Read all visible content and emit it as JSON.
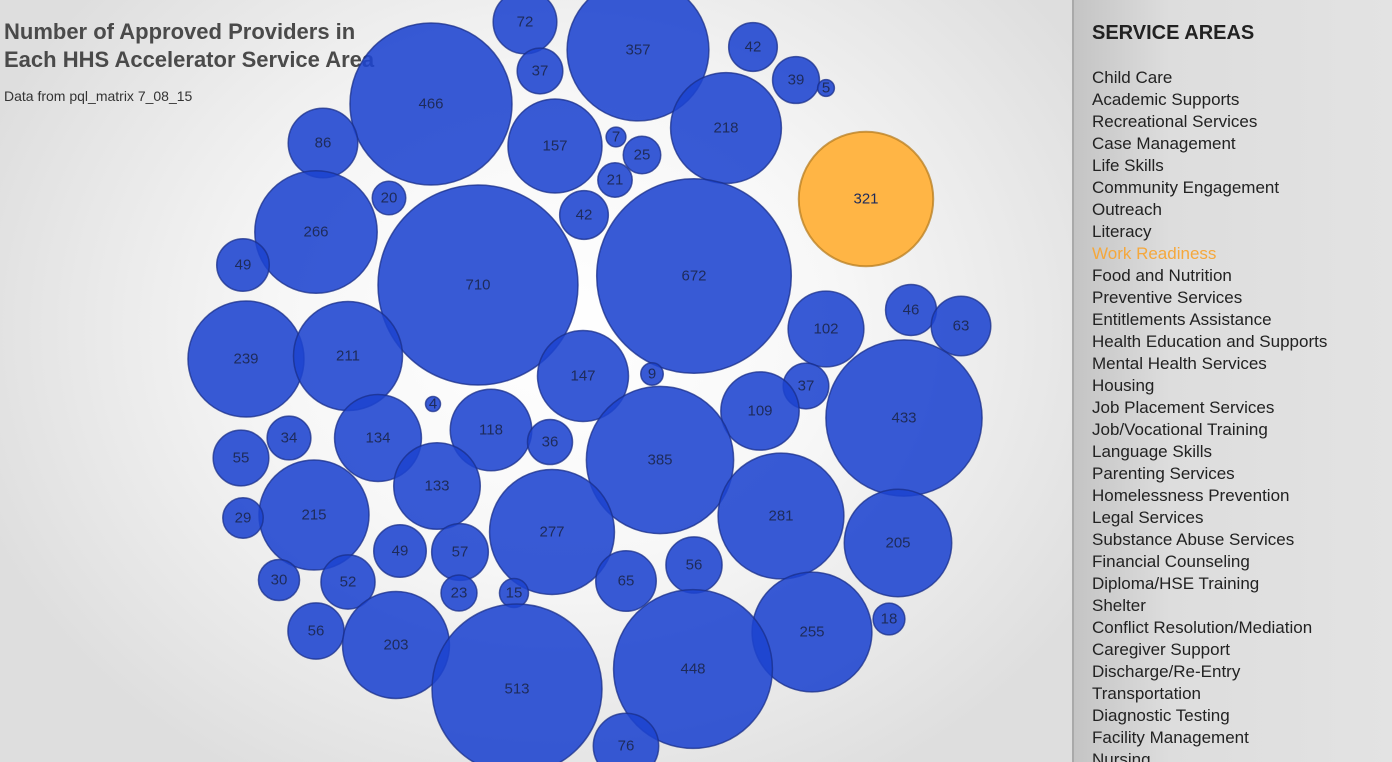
{
  "chart_data": {
    "type": "bubble",
    "title": "Number of Approved Providers in Each HHS Accelerator Service Area",
    "subtitle": "Data from pql_matrix 7_08_15",
    "highlighted_value": 321,
    "highlighted_category": "Work Readiness",
    "colors": {
      "bubble": "#1c43cf",
      "highlight": "#ffb545",
      "highlight_text": "#f5a83c"
    },
    "values": [
      72,
      357,
      42,
      37,
      39,
      5,
      466,
      218,
      86,
      157,
      7,
      25,
      21,
      321,
      20,
      266,
      42,
      710,
      672,
      49,
      46,
      63,
      102,
      239,
      211,
      147,
      9,
      37,
      433,
      4,
      109,
      134,
      118,
      36,
      34,
      385,
      55,
      133,
      215,
      281,
      29,
      277,
      205,
      49,
      57,
      56,
      30,
      52,
      65,
      23,
      15,
      56,
      203,
      255,
      18,
      513,
      448,
      76
    ]
  },
  "sidebar": {
    "heading": "SERVICE AREAS",
    "items": [
      "Child Care",
      "Academic Supports",
      "Recreational Services",
      "Case Management",
      "Life Skills",
      "Community Engagement",
      "Outreach",
      "Literacy",
      "Work Readiness",
      "Food and Nutrition",
      "Preventive Services",
      "Entitlements Assistance",
      "Health Education and Supports",
      "Mental Health Services",
      "Housing",
      "Job Placement Services",
      "Job/Vocational Training",
      "Language Skills",
      "Parenting Services",
      "Homelessness Prevention",
      "Legal Services",
      "Substance Abuse Services",
      "Financial Counseling",
      "Diploma/HSE Training",
      "Shelter",
      "Conflict Resolution/Mediation",
      "Caregiver Support",
      "Discharge/Re-Entry",
      "Transportation",
      "Diagnostic Testing",
      "Facility Management",
      "Nursing"
    ],
    "active_item": "Work Readiness"
  }
}
